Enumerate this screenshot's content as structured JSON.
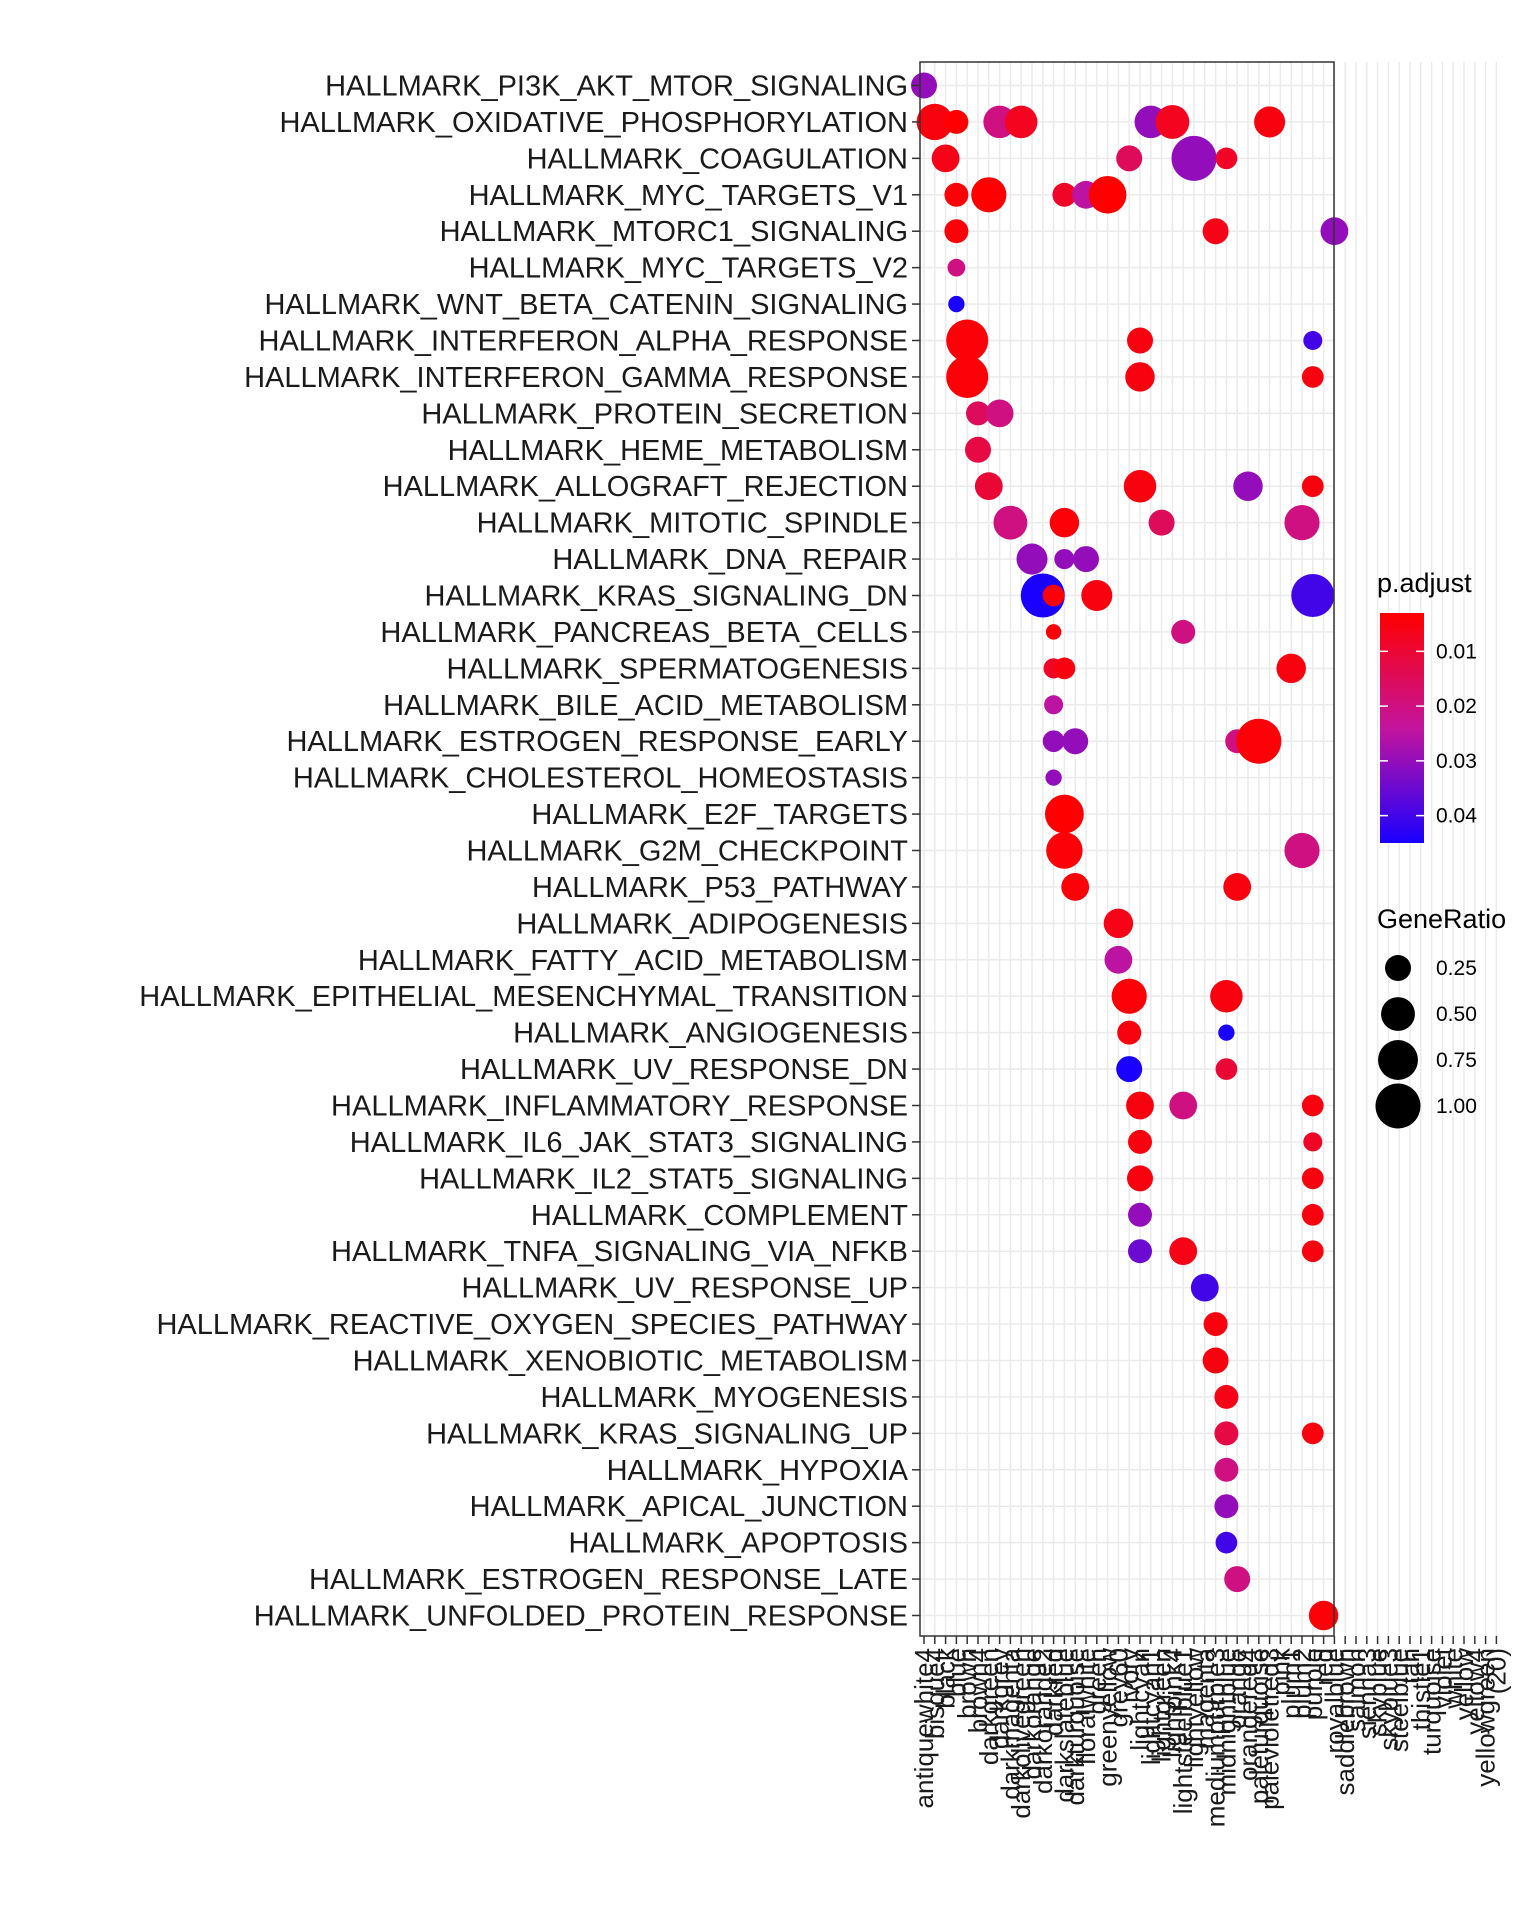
{
  "chart_data": {
    "type": "scatter",
    "subtype": "dot-plot",
    "title": "",
    "xlabel": "",
    "ylabel": "",
    "grid": true,
    "legend_position": "right",
    "x_categories": [
      "antiquewhite4",
      "bisque4",
      "black",
      "blue",
      "brown",
      "brown4",
      "darkgreen",
      "darkgrey",
      "darkmagenta",
      "darkolivegreen",
      "darkorange",
      "darkorange2",
      "darkred",
      "darkslateblue",
      "darkturquoise",
      "floralwhite",
      "green",
      "greenyellow",
      "grey60",
      "ivory",
      "lightcyan",
      "lightcyan1",
      "lightgreen",
      "lightpink4",
      "lightsteelblue1",
      "lightyellow",
      "magenta",
      "mediumpurple3",
      "midnightblue",
      "orange",
      "orangered4",
      "paleturquoise",
      "palevioletred3",
      "pink",
      "plum1",
      "plum2",
      "purple",
      "red",
      "royalblue",
      "saddlebrown",
      "salmon",
      "sienna3",
      "skyblue",
      "skyblue3",
      "steelblue",
      "tan",
      "thistle1",
      "turquoise",
      "violet",
      "white",
      "yellow",
      "yellow4",
      "yellowgreen",
      "(20)"
    ],
    "y_categories": [
      "HALLMARK_PI3K_AKT_MTOR_SIGNALING",
      "HALLMARK_OXIDATIVE_PHOSPHORYLATION",
      "HALLMARK_COAGULATION",
      "HALLMARK_MYC_TARGETS_V1",
      "HALLMARK_MTORC1_SIGNALING",
      "HALLMARK_MYC_TARGETS_V2",
      "HALLMARK_WNT_BETA_CATENIN_SIGNALING",
      "HALLMARK_INTERFERON_ALPHA_RESPONSE",
      "HALLMARK_INTERFERON_GAMMA_RESPONSE",
      "HALLMARK_PROTEIN_SECRETION",
      "HALLMARK_HEME_METABOLISM",
      "HALLMARK_ALLOGRAFT_REJECTION",
      "HALLMARK_MITOTIC_SPINDLE",
      "HALLMARK_DNA_REPAIR",
      "HALLMARK_KRAS_SIGNALING_DN",
      "HALLMARK_PANCREAS_BETA_CELLS",
      "HALLMARK_SPERMATOGENESIS",
      "HALLMARK_BILE_ACID_METABOLISM",
      "HALLMARK_ESTROGEN_RESPONSE_EARLY",
      "HALLMARK_CHOLESTEROL_HOMEOSTASIS",
      "HALLMARK_E2F_TARGETS",
      "HALLMARK_G2M_CHECKPOINT",
      "HALLMARK_P53_PATHWAY",
      "HALLMARK_ADIPOGENESIS",
      "HALLMARK_FATTY_ACID_METABOLISM",
      "HALLMARK_EPITHELIAL_MESENCHYMAL_TRANSITION",
      "HALLMARK_ANGIOGENESIS",
      "HALLMARK_UV_RESPONSE_DN",
      "HALLMARK_INFLAMMATORY_RESPONSE",
      "HALLMARK_IL6_JAK_STAT3_SIGNALING",
      "HALLMARK_IL2_STAT5_SIGNALING",
      "HALLMARK_COMPLEMENT",
      "HALLMARK_TNFA_SIGNALING_VIA_NFKB",
      "HALLMARK_UV_RESPONSE_UP",
      "HALLMARK_REACTIVE_OXYGEN_SPECIES_PATHWAY",
      "HALLMARK_XENOBIOTIC_METABOLISM",
      "HALLMARK_MYOGENESIS",
      "HALLMARK_KRAS_SIGNALING_UP",
      "HALLMARK_HYPOXIA",
      "HALLMARK_APICAL_JUNCTION",
      "HALLMARK_APOPTOSIS",
      "HALLMARK_ESTROGEN_RESPONSE_LATE",
      "HALLMARK_UNFOLDED_PROTEIN_RESPONSE"
    ],
    "points": [
      {
        "x": 0,
        "y": 0,
        "ratio": 0.25,
        "padj": 0.03
      },
      {
        "x": 1,
        "y": 1,
        "ratio": 0.6,
        "padj": 0.005
      },
      {
        "x": 3,
        "y": 1,
        "ratio": 0.2,
        "padj": 0.003
      },
      {
        "x": 7,
        "y": 1,
        "ratio": 0.45,
        "padj": 0.02
      },
      {
        "x": 9,
        "y": 1,
        "ratio": 0.45,
        "padj": 0.007
      },
      {
        "x": 21,
        "y": 1,
        "ratio": 0.45,
        "padj": 0.03
      },
      {
        "x": 23,
        "y": 1,
        "ratio": 0.5,
        "padj": 0.007
      },
      {
        "x": 32,
        "y": 1,
        "ratio": 0.4,
        "padj": 0.005
      },
      {
        "x": 2,
        "y": 2,
        "ratio": 0.3,
        "padj": 0.006
      },
      {
        "x": 19,
        "y": 2,
        "ratio": 0.25,
        "padj": 0.015
      },
      {
        "x": 25,
        "y": 2,
        "ratio": 1.0,
        "padj": 0.03
      },
      {
        "x": 28,
        "y": 2,
        "ratio": 0.15,
        "padj": 0.008
      },
      {
        "x": 3,
        "y": 3,
        "ratio": 0.2,
        "padj": 0.004
      },
      {
        "x": 6,
        "y": 3,
        "ratio": 0.55,
        "padj": 0.003
      },
      {
        "x": 13,
        "y": 3,
        "ratio": 0.2,
        "padj": 0.008
      },
      {
        "x": 15,
        "y": 3,
        "ratio": 0.3,
        "padj": 0.025
      },
      {
        "x": 17,
        "y": 3,
        "ratio": 0.65,
        "padj": 0.003
      },
      {
        "x": 3,
        "y": 4,
        "ratio": 0.2,
        "padj": 0.004
      },
      {
        "x": 27,
        "y": 4,
        "ratio": 0.25,
        "padj": 0.006
      },
      {
        "x": 38,
        "y": 4,
        "ratio": 0.3,
        "padj": 0.03
      },
      {
        "x": 3,
        "y": 5,
        "ratio": 0.08,
        "padj": 0.02
      },
      {
        "x": 3,
        "y": 6,
        "ratio": 0.06,
        "padj": 0.045
      },
      {
        "x": 4,
        "y": 7,
        "ratio": 0.85,
        "padj": 0.004
      },
      {
        "x": 20,
        "y": 7,
        "ratio": 0.25,
        "padj": 0.005
      },
      {
        "x": 36,
        "y": 7,
        "ratio": 0.1,
        "padj": 0.04
      },
      {
        "x": 4,
        "y": 8,
        "ratio": 0.85,
        "padj": 0.004
      },
      {
        "x": 20,
        "y": 8,
        "ratio": 0.35,
        "padj": 0.005
      },
      {
        "x": 36,
        "y": 8,
        "ratio": 0.15,
        "padj": 0.005
      },
      {
        "x": 5,
        "y": 9,
        "ratio": 0.2,
        "padj": 0.015
      },
      {
        "x": 7,
        "y": 9,
        "ratio": 0.3,
        "padj": 0.02
      },
      {
        "x": 5,
        "y": 10,
        "ratio": 0.25,
        "padj": 0.012
      },
      {
        "x": 6,
        "y": 11,
        "ratio": 0.3,
        "padj": 0.01
      },
      {
        "x": 20,
        "y": 11,
        "ratio": 0.45,
        "padj": 0.005
      },
      {
        "x": 30,
        "y": 11,
        "ratio": 0.35,
        "padj": 0.03
      },
      {
        "x": 36,
        "y": 11,
        "ratio": 0.15,
        "padj": 0.005
      },
      {
        "x": 8,
        "y": 12,
        "ratio": 0.5,
        "padj": 0.02
      },
      {
        "x": 13,
        "y": 12,
        "ratio": 0.35,
        "padj": 0.004
      },
      {
        "x": 22,
        "y": 12,
        "ratio": 0.25,
        "padj": 0.015
      },
      {
        "x": 35,
        "y": 12,
        "ratio": 0.55,
        "padj": 0.02
      },
      {
        "x": 10,
        "y": 13,
        "ratio": 0.4,
        "padj": 0.03
      },
      {
        "x": 13,
        "y": 13,
        "ratio": 0.12,
        "padj": 0.03
      },
      {
        "x": 15,
        "y": 13,
        "ratio": 0.25,
        "padj": 0.03
      },
      {
        "x": 11,
        "y": 14,
        "ratio": 0.95,
        "padj": 0.045
      },
      {
        "x": 12,
        "y": 14,
        "ratio": 0.15,
        "padj": 0.004
      },
      {
        "x": 16,
        "y": 14,
        "ratio": 0.4,
        "padj": 0.005
      },
      {
        "x": 36,
        "y": 14,
        "ratio": 0.9,
        "padj": 0.04
      },
      {
        "x": 12,
        "y": 15,
        "ratio": 0.05,
        "padj": 0.004
      },
      {
        "x": 24,
        "y": 15,
        "ratio": 0.2,
        "padj": 0.02
      },
      {
        "x": 12,
        "y": 16,
        "ratio": 0.12,
        "padj": 0.008
      },
      {
        "x": 13,
        "y": 16,
        "ratio": 0.15,
        "padj": 0.005
      },
      {
        "x": 34,
        "y": 16,
        "ratio": 0.35,
        "padj": 0.005
      },
      {
        "x": 12,
        "y": 17,
        "ratio": 0.1,
        "padj": 0.025
      },
      {
        "x": 12,
        "y": 18,
        "ratio": 0.15,
        "padj": 0.03
      },
      {
        "x": 14,
        "y": 18,
        "ratio": 0.25,
        "padj": 0.03
      },
      {
        "x": 29,
        "y": 18,
        "ratio": 0.2,
        "padj": 0.02
      },
      {
        "x": 31,
        "y": 18,
        "ratio": 1.0,
        "padj": 0.004
      },
      {
        "x": 12,
        "y": 19,
        "ratio": 0.06,
        "padj": 0.03
      },
      {
        "x": 13,
        "y": 20,
        "ratio": 0.7,
        "padj": 0.003
      },
      {
        "x": 13,
        "y": 21,
        "ratio": 0.6,
        "padj": 0.004
      },
      {
        "x": 35,
        "y": 21,
        "ratio": 0.55,
        "padj": 0.02
      },
      {
        "x": 14,
        "y": 22,
        "ratio": 0.3,
        "padj": 0.004
      },
      {
        "x": 29,
        "y": 22,
        "ratio": 0.3,
        "padj": 0.005
      },
      {
        "x": 18,
        "y": 23,
        "ratio": 0.35,
        "padj": 0.006
      },
      {
        "x": 18,
        "y": 24,
        "ratio": 0.3,
        "padj": 0.025
      },
      {
        "x": 19,
        "y": 25,
        "ratio": 0.55,
        "padj": 0.004
      },
      {
        "x": 28,
        "y": 25,
        "ratio": 0.45,
        "padj": 0.005
      },
      {
        "x": 19,
        "y": 26,
        "ratio": 0.2,
        "padj": 0.005
      },
      {
        "x": 28,
        "y": 26,
        "ratio": 0.06,
        "padj": 0.045
      },
      {
        "x": 19,
        "y": 27,
        "ratio": 0.25,
        "padj": 0.045
      },
      {
        "x": 28,
        "y": 27,
        "ratio": 0.15,
        "padj": 0.01
      },
      {
        "x": 20,
        "y": 28,
        "ratio": 0.3,
        "padj": 0.005
      },
      {
        "x": 24,
        "y": 28,
        "ratio": 0.3,
        "padj": 0.02
      },
      {
        "x": 36,
        "y": 28,
        "ratio": 0.15,
        "padj": 0.005
      },
      {
        "x": 20,
        "y": 29,
        "ratio": 0.2,
        "padj": 0.005
      },
      {
        "x": 36,
        "y": 29,
        "ratio": 0.1,
        "padj": 0.008
      },
      {
        "x": 20,
        "y": 30,
        "ratio": 0.25,
        "padj": 0.005
      },
      {
        "x": 36,
        "y": 30,
        "ratio": 0.15,
        "padj": 0.005
      },
      {
        "x": 20,
        "y": 31,
        "ratio": 0.2,
        "padj": 0.03
      },
      {
        "x": 36,
        "y": 31,
        "ratio": 0.15,
        "padj": 0.005
      },
      {
        "x": 20,
        "y": 32,
        "ratio": 0.2,
        "padj": 0.035
      },
      {
        "x": 24,
        "y": 32,
        "ratio": 0.3,
        "padj": 0.006
      },
      {
        "x": 36,
        "y": 32,
        "ratio": 0.15,
        "padj": 0.005
      },
      {
        "x": 26,
        "y": 33,
        "ratio": 0.3,
        "padj": 0.04
      },
      {
        "x": 27,
        "y": 34,
        "ratio": 0.2,
        "padj": 0.005
      },
      {
        "x": 27,
        "y": 35,
        "ratio": 0.25,
        "padj": 0.005
      },
      {
        "x": 28,
        "y": 36,
        "ratio": 0.2,
        "padj": 0.006
      },
      {
        "x": 28,
        "y": 37,
        "ratio": 0.2,
        "padj": 0.012
      },
      {
        "x": 36,
        "y": 37,
        "ratio": 0.15,
        "padj": 0.005
      },
      {
        "x": 28,
        "y": 38,
        "ratio": 0.2,
        "padj": 0.02
      },
      {
        "x": 28,
        "y": 39,
        "ratio": 0.2,
        "padj": 0.03
      },
      {
        "x": 28,
        "y": 40,
        "ratio": 0.15,
        "padj": 0.04
      },
      {
        "x": 29,
        "y": 41,
        "ratio": 0.25,
        "padj": 0.02
      },
      {
        "x": 37,
        "y": 42,
        "ratio": 0.35,
        "padj": 0.004
      }
    ],
    "color_legend": {
      "title": "p.adjust",
      "ticks": [
        "0.01",
        "0.02",
        "0.03",
        "0.04"
      ],
      "low_color": "#FF0000",
      "high_color": "#0000FF"
    },
    "size_legend": {
      "title": "GeneRatio",
      "ticks": [
        "0.25",
        "0.50",
        "0.75",
        "1.00"
      ]
    }
  }
}
